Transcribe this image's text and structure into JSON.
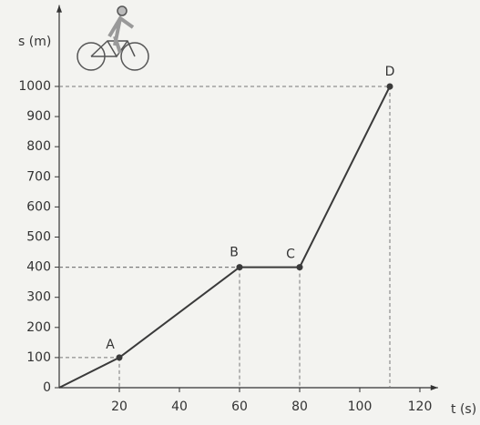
{
  "chart_data": {
    "type": "line",
    "x_label": "t (s)",
    "y_label": "s (m)",
    "x": [
      0,
      20,
      60,
      80,
      110
    ],
    "series": [
      {
        "color": "#3a3a3a",
        "values": [
          0,
          100,
          400,
          400,
          1000
        ]
      }
    ],
    "point_labels": [
      null,
      "A",
      "B",
      "C",
      "D"
    ],
    "xlim": [
      0,
      126
    ],
    "ylim": [
      0,
      1270
    ],
    "xticks": [
      20,
      40,
      60,
      80,
      100,
      120
    ],
    "yticks": [
      0,
      100,
      200,
      300,
      400,
      500,
      600,
      700,
      800,
      900,
      1000
    ]
  }
}
